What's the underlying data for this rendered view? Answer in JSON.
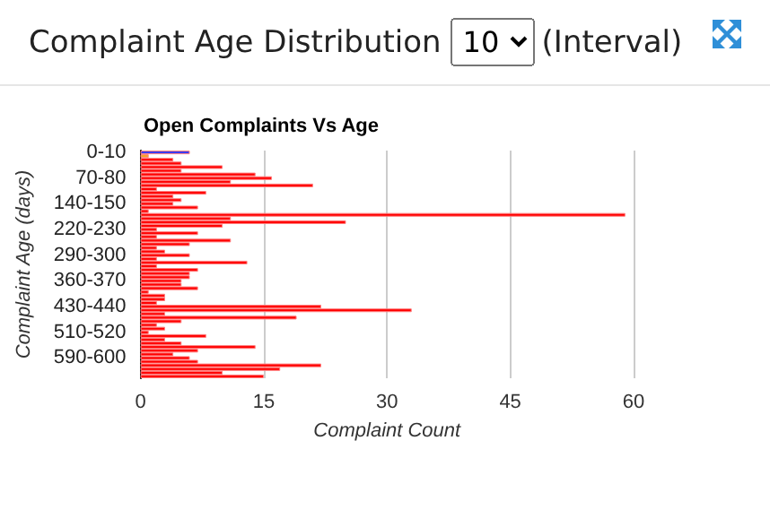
{
  "chart_data": {
    "type": "bar",
    "orientation": "horizontal",
    "title": "Complaint Age Distribution",
    "subtitle": "Open Complaints Vs Age",
    "annotations": [
      "10",
      "(Interval)"
    ],
    "xlabel": "Complaint Count",
    "ylabel": "Complaint Age (days)",
    "categories": [
      "0-10",
      null,
      null,
      null,
      null,
      null,
      null,
      "70-80",
      null,
      null,
      null,
      null,
      null,
      null,
      "140-150",
      null,
      null,
      null,
      null,
      null,
      null,
      "220-230",
      null,
      null,
      null,
      null,
      null,
      null,
      "290-300",
      null,
      null,
      null,
      null,
      null,
      null,
      "360-370",
      null,
      null,
      null,
      null,
      null,
      null,
      "430-440",
      null,
      null,
      null,
      null,
      null,
      null,
      "510-520",
      null,
      null,
      null,
      null,
      null,
      null,
      "590-600",
      null,
      null,
      null,
      null,
      null
    ],
    "values": [
      6,
      1,
      4,
      5,
      10,
      5,
      14,
      16,
      11,
      21,
      2,
      8,
      4,
      5,
      4,
      7,
      1,
      59,
      11,
      25,
      10,
      2,
      7,
      2,
      11,
      6,
      2,
      3,
      6,
      2,
      13,
      2,
      7,
      6,
      6,
      5,
      5,
      7,
      1,
      3,
      3,
      2,
      22,
      33,
      3,
      19,
      5,
      2,
      3,
      1,
      8,
      3,
      5,
      14,
      7,
      4,
      6,
      7,
      22,
      17,
      10,
      15
    ],
    "colors": [
      "#3b3bf0",
      "#f5a623",
      "#ff0000",
      "#ff0000",
      "#ff0000",
      "#ff0000",
      "#ff0000",
      "#ff0000",
      "#ff0000",
      "#ff0000",
      "#ff0000",
      "#ff0000",
      "#ff0000",
      "#ff0000",
      "#ff0000",
      "#ff0000",
      "#ff0000",
      "#ff0000",
      "#ff0000",
      "#ff0000",
      "#ff0000",
      "#ff0000",
      "#ff0000",
      "#ff0000",
      "#ff0000",
      "#ff0000",
      "#ff0000",
      "#ff0000",
      "#ff0000",
      "#ff0000",
      "#ff0000",
      "#ff0000",
      "#ff0000",
      "#ff0000",
      "#ff0000",
      "#ff0000",
      "#ff0000",
      "#ff0000",
      "#ff0000",
      "#ff0000",
      "#ff0000",
      "#ff0000",
      "#ff0000",
      "#ff0000",
      "#ff0000",
      "#ff0000",
      "#ff0000",
      "#ff0000",
      "#ff0000",
      "#ff0000",
      "#ff0000",
      "#ff0000",
      "#ff0000",
      "#ff0000",
      "#ff0000",
      "#ff0000",
      "#ff0000",
      "#ff0000",
      "#ff0000",
      "#ff0000",
      "#ff0000",
      "#ff0000"
    ],
    "xlim": [
      0,
      60
    ],
    "xticks": [
      0,
      15,
      30,
      45,
      60
    ],
    "grid": "x"
  }
}
